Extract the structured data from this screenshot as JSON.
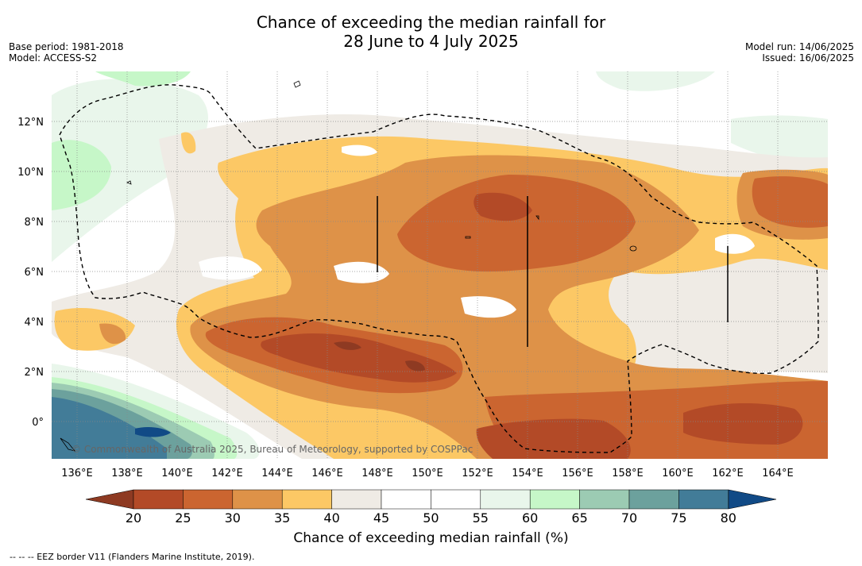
{
  "title": {
    "line1": "Chance of exceeding the median rainfall for",
    "line2": "28 June to 4 July 2025"
  },
  "meta_left": {
    "base_period": "Base period: 1981-2018",
    "model": "Model: ACCESS-S2"
  },
  "meta_right": {
    "model_run": "Model run: 14/06/2025",
    "issued": "Issued: 16/06/2025"
  },
  "copyright": "© Commonwealth of Australia 2025, Bureau of Meteorology, supported by COSPPac",
  "footer": "--  --  -- EEZ border V11 (Flanders Marine Institute, 2019).",
  "map": {
    "lon_ticks": [
      "136°E",
      "138°E",
      "140°E",
      "142°E",
      "144°E",
      "146°E",
      "148°E",
      "150°E",
      "152°E",
      "154°E",
      "156°E",
      "158°E",
      "160°E",
      "162°E",
      "164°E"
    ],
    "lat_ticks": [
      "12°N",
      "10°N",
      "8°N",
      "6°N",
      "4°N",
      "2°N",
      "0°"
    ]
  },
  "colorbar": {
    "title": "Chance of exceeding median rainfall (%)",
    "labels": [
      "20",
      "25",
      "30",
      "35",
      "40",
      "45",
      "50",
      "55",
      "60",
      "65",
      "70",
      "75",
      "80"
    ],
    "colors": [
      "#b34a27",
      "#cb6530",
      "#de9248",
      "#fcc865",
      "#efebe5",
      "#ffffff",
      "#ffffff",
      "#e9f6eb",
      "#c6f7c8",
      "#9ccbb3",
      "#6ca19d",
      "#427c98"
    ],
    "low_color": "#8e3a22",
    "high_color": "#114a86"
  }
}
